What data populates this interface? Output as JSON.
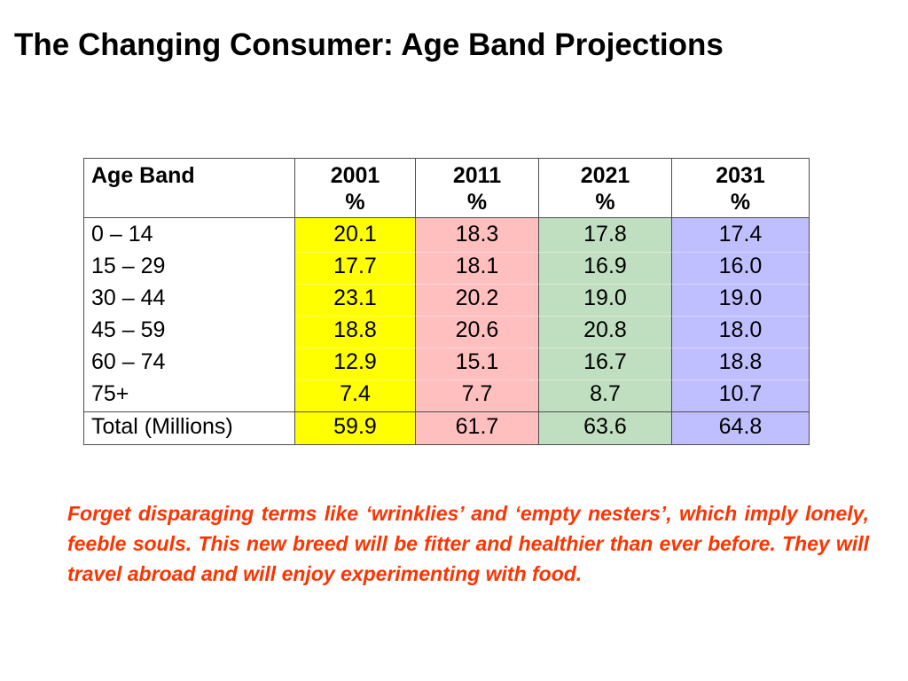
{
  "title": "The Changing Consumer: Age Band Projections",
  "colors": {
    "col_2001": "#ffff00",
    "col_2011": "#ffbfbf",
    "col_2021": "#c0dfc0",
    "col_2031": "#bfbfff",
    "note_text": "#ff3300"
  },
  "table": {
    "header": {
      "age_band": "Age Band",
      "years": [
        {
          "year": "2001",
          "unit": "%"
        },
        {
          "year": "2011",
          "unit": "%"
        },
        {
          "year": "2021",
          "unit": "%"
        },
        {
          "year": "2031",
          "unit": "%"
        }
      ]
    },
    "rows": [
      {
        "label": "0 – 14",
        "values": [
          "20.1",
          "18.3",
          "17.8",
          "17.4"
        ]
      },
      {
        "label": "15 – 29",
        "values": [
          "17.7",
          "18.1",
          "16.9",
          "16.0"
        ]
      },
      {
        "label": "30 – 44",
        "values": [
          "23.1",
          "20.2",
          "19.0",
          "19.0"
        ]
      },
      {
        "label": "45 – 59",
        "values": [
          "18.8",
          "20.6",
          "20.8",
          "18.0"
        ]
      },
      {
        "label": "60 – 74",
        "values": [
          "12.9",
          "15.1",
          "16.7",
          "18.8"
        ]
      },
      {
        "label": "75+",
        "values": [
          "7.4",
          "7.7",
          "8.7",
          "10.7"
        ]
      }
    ],
    "total": {
      "label": "Total (Millions)",
      "values": [
        "59.9",
        "61.7",
        "63.6",
        "64.8"
      ]
    }
  },
  "note": "Forget disparaging terms like ‘wrinklies’ and ‘empty nesters’, which imply lonely, feeble souls.  This new breed will be fitter and healthier than ever before.  They will travel abroad and will enjoy experimenting with food."
}
